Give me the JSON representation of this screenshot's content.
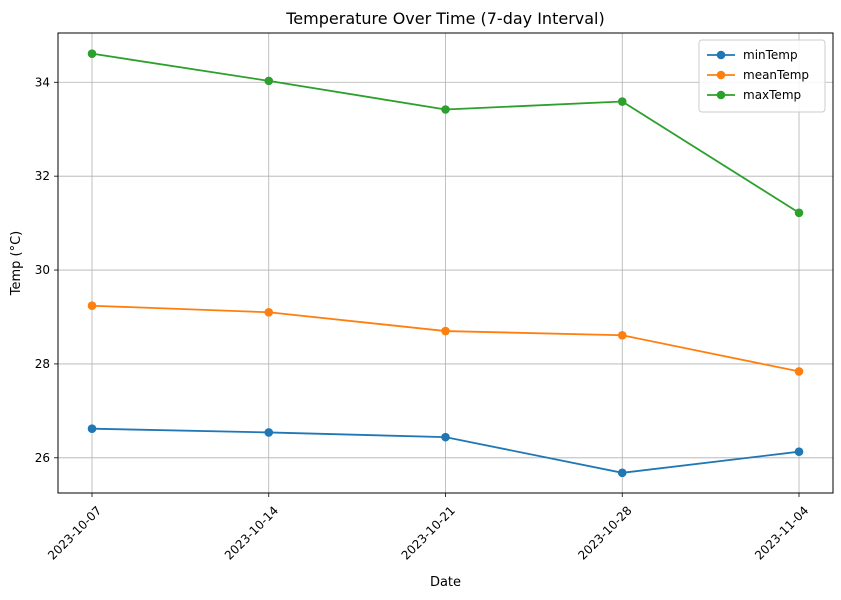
{
  "chart_data": {
    "type": "line",
    "title": "Temperature Over Time (7-day Interval)",
    "xlabel": "Date",
    "ylabel": "Temp (°C)",
    "categories": [
      "2023-10-07",
      "2023-10-14",
      "2023-10-21",
      "2023-10-28",
      "2023-11-04"
    ],
    "yticks": [
      26,
      28,
      30,
      32,
      34
    ],
    "ylim": [
      25.25,
      35.05
    ],
    "grid": true,
    "legend_position": "top-right",
    "series": [
      {
        "name": "minTemp",
        "color": "#1f77b4",
        "values": [
          26.62,
          26.54,
          26.44,
          25.68,
          26.13
        ]
      },
      {
        "name": "meanTemp",
        "color": "#ff7f0e",
        "values": [
          29.24,
          29.1,
          28.7,
          28.61,
          27.84
        ]
      },
      {
        "name": "maxTemp",
        "color": "#2ca02c",
        "values": [
          34.61,
          34.03,
          33.42,
          33.59,
          31.22
        ]
      }
    ]
  }
}
